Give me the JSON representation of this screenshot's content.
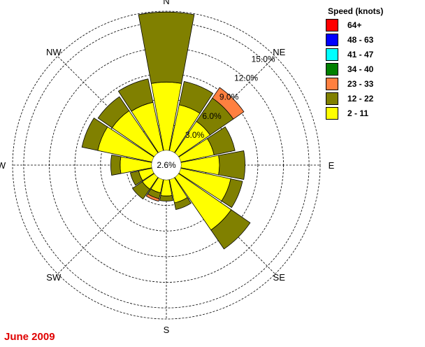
{
  "caption": "June 2009",
  "chart_data": {
    "type": "windrose",
    "calm_label": "2.6%",
    "ring_labels": [
      "3.0%",
      "6.0%",
      "9.0%",
      "12.0%",
      "15.0%"
    ],
    "ring_values": [
      3,
      6,
      9,
      12,
      15
    ],
    "max_value": 16.3,
    "direction_labels": [
      "N",
      "NE",
      "E",
      "SE",
      "S",
      "SW",
      "W",
      "NW"
    ],
    "legend": {
      "title": "Speed (knots)",
      "items": [
        {
          "label": "64+",
          "color": "#ff0000"
        },
        {
          "label": "48 - 63",
          "color": "#0000ff"
        },
        {
          "label": "41 - 47",
          "color": "#00ffff"
        },
        {
          "label": "34 - 40",
          "color": "#008000"
        },
        {
          "label": "23 - 33",
          "color": "#ff8040"
        },
        {
          "label": "12 - 22",
          "color": "#808000"
        },
        {
          "label": "2 - 11",
          "color": "#ffff00"
        }
      ]
    },
    "sectors": [
      "N",
      "NNE",
      "NE",
      "ENE",
      "E",
      "ESE",
      "SE",
      "SSE",
      "S",
      "SSW",
      "SW",
      "WSW",
      "W",
      "WNW",
      "NW",
      "NNW"
    ],
    "series": [
      {
        "speed": "2 - 11",
        "color": "#ffff00",
        "values": [
          8.0,
          5.5,
          4.5,
          4.0,
          4.5,
          6.0,
          7.5,
          2.8,
          1.9,
          1.6,
          1.7,
          1.6,
          3.7,
          6.5,
          6.0,
          5.8
        ]
      },
      {
        "speed": "12 - 22",
        "color": "#808000",
        "values": [
          8.2,
          2.8,
          3.3,
          2.5,
          3.0,
          1.4,
          2.7,
          0.8,
          0.6,
          0.7,
          1.4,
          1.0,
          1.1,
          1.9,
          2.0,
          2.8
        ]
      },
      {
        "speed": "23 - 33",
        "color": "#ff8040",
        "values": [
          0.0,
          0.0,
          1.5,
          0.0,
          0.0,
          0.0,
          0.0,
          0.0,
          0.0,
          0.3,
          0.0,
          0.0,
          0.0,
          0.0,
          0.0,
          0.0
        ]
      }
    ]
  }
}
